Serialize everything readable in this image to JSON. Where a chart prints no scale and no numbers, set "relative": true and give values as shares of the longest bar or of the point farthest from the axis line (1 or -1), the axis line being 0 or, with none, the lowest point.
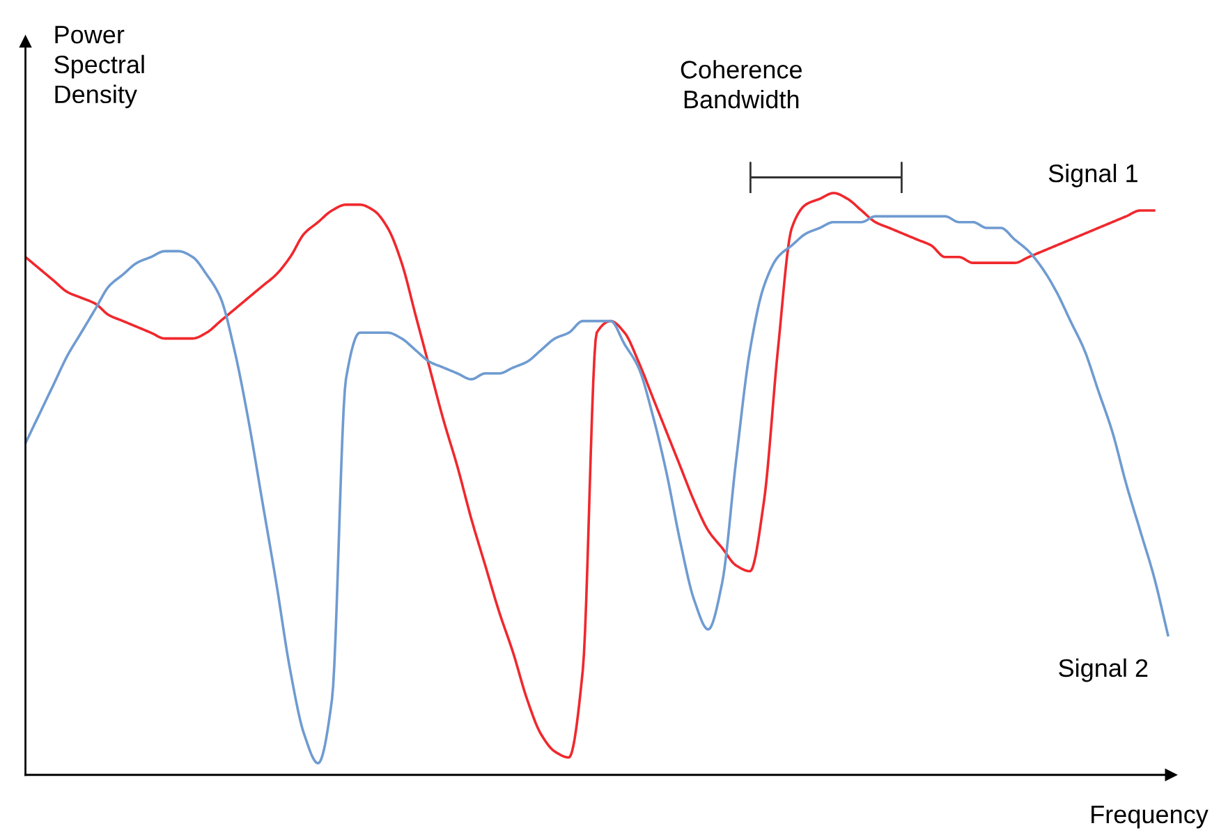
{
  "chart_data": {
    "type": "line",
    "relative": true,
    "xlabel": "Frequency",
    "ylabel": "Power\nSpectral\nDensity",
    "annotations": [
      "Coherence\nBandwidth"
    ],
    "grid": false,
    "marker": "none",
    "line_style": "solid",
    "categories": [
      null,
      null,
      null,
      null,
      null,
      null,
      null,
      null,
      null,
      null,
      null,
      null,
      null,
      null,
      null,
      null,
      null,
      null,
      null,
      null,
      null,
      null,
      null,
      null,
      null,
      null,
      null,
      null,
      null,
      null,
      null,
      null,
      null,
      null,
      null,
      null,
      null,
      null,
      null,
      null,
      null,
      null,
      null,
      null,
      null,
      null,
      null,
      null,
      null,
      null,
      null,
      null,
      null,
      null,
      null,
      null,
      null,
      null,
      null,
      null,
      null,
      null,
      null,
      null,
      null,
      null,
      null,
      null,
      null,
      null,
      null,
      null,
      null,
      null,
      null,
      null,
      null,
      null,
      null,
      null,
      null,
      null,
      null
    ],
    "series": [
      {
        "name": "Signal 1",
        "color": "#f0282d",
        "values": [
          0.89,
          0.87,
          0.85,
          0.83,
          0.82,
          0.81,
          0.79,
          0.78,
          0.77,
          0.76,
          0.75,
          0.75,
          0.75,
          0.76,
          0.78,
          0.8,
          0.82,
          0.84,
          0.86,
          0.89,
          0.93,
          0.95,
          0.97,
          0.98,
          0.98,
          0.97,
          0.94,
          0.88,
          0.79,
          0.7,
          0.61,
          0.53,
          0.44,
          0.36,
          0.28,
          0.21,
          0.13,
          0.07,
          0.04,
          0.03,
          0.18,
          0.76,
          0.78,
          0.76,
          0.71,
          0.65,
          0.59,
          0.53,
          0.47,
          0.42,
          0.39,
          0.36,
          0.35,
          0.47,
          0.73,
          0.94,
          0.98,
          0.99,
          1.0,
          0.99,
          0.97,
          0.95,
          0.94,
          0.93,
          0.92,
          0.91,
          0.89,
          0.89,
          0.88,
          0.88,
          0.88,
          0.88,
          0.89,
          0.9,
          0.91,
          0.92,
          0.93,
          0.94,
          0.95,
          0.96,
          0.97,
          0.97,
          null
        ]
      },
      {
        "name": "Signal 2",
        "color": "#6f9bd1",
        "values": [
          0.57,
          0.62,
          0.67,
          0.72,
          0.76,
          0.8,
          0.84,
          0.86,
          0.88,
          0.89,
          0.9,
          0.9,
          0.89,
          0.86,
          0.82,
          0.73,
          0.61,
          0.47,
          0.33,
          0.18,
          0.07,
          0.02,
          0.13,
          0.68,
          0.76,
          0.76,
          0.76,
          0.75,
          0.73,
          0.71,
          0.7,
          0.69,
          0.68,
          0.69,
          0.69,
          0.7,
          0.71,
          0.73,
          0.75,
          0.76,
          0.78,
          0.78,
          0.78,
          0.74,
          0.7,
          0.62,
          0.52,
          0.4,
          0.3,
          0.25,
          0.33,
          0.54,
          0.73,
          0.84,
          0.89,
          0.91,
          0.93,
          0.94,
          0.95,
          0.95,
          0.95,
          0.96,
          0.96,
          0.96,
          0.96,
          0.96,
          0.96,
          0.95,
          0.95,
          0.94,
          0.94,
          0.92,
          0.9,
          0.87,
          0.83,
          0.78,
          0.73,
          0.66,
          0.59,
          0.5,
          0.42,
          0.34,
          0.24
        ]
      }
    ]
  }
}
